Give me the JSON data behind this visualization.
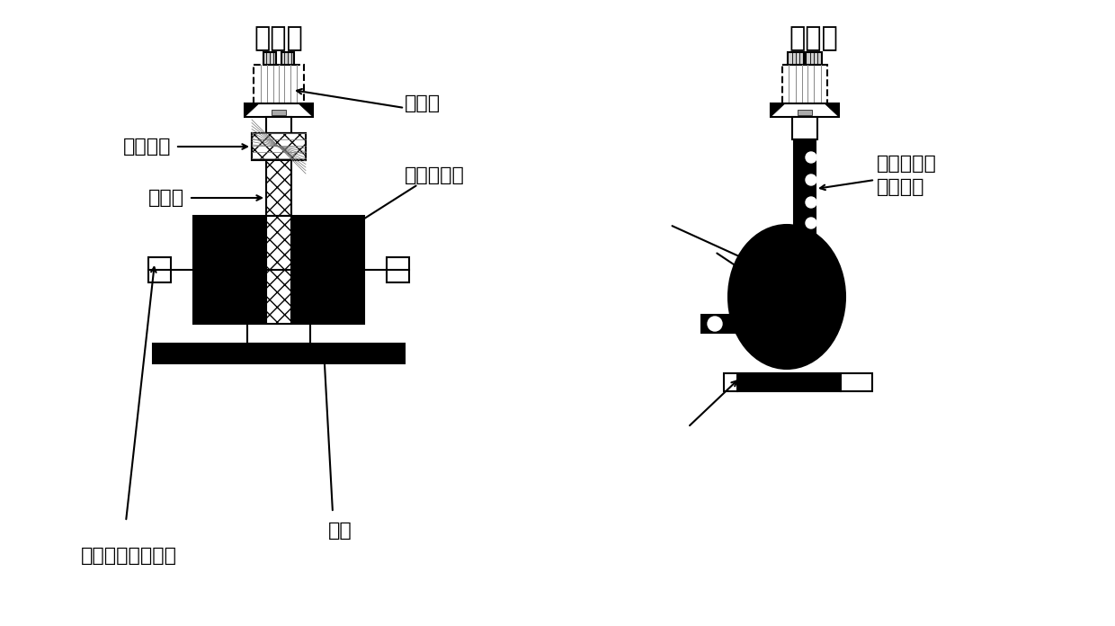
{
  "title_left": "主视图",
  "title_right": "左视图",
  "bg_color": "#ffffff",
  "labels": {
    "juxing": "矩形喷嘴",
    "gongzuoye": "工作液",
    "paoguanglun": "抛光轮",
    "cichang": "磁场发生器",
    "paoguanglun_zhi": "抛光轮旋转轴支架",
    "gongjian": "工件",
    "gongzuoye2": "工作液及其\n中的微粒"
  },
  "font_size_title": 22,
  "font_size_label": 16
}
